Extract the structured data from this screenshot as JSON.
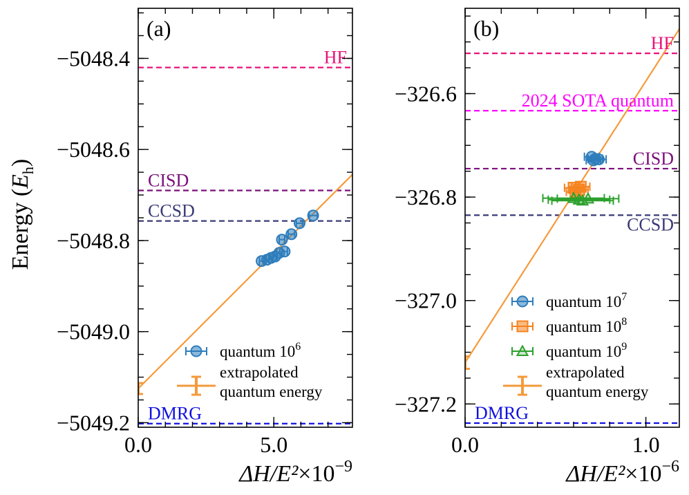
{
  "ylabel_main": "Energy (",
  "ylabel_sym": "E",
  "ylabel_sub": "h",
  "ylabel_close": ")",
  "chart_data": [
    {
      "type": "scatter",
      "panel_label": "(a)",
      "xlim": [
        0,
        7.9
      ],
      "ylim": [
        -5049.21,
        -5048.29
      ],
      "x_multiplier": "×10",
      "x_multiplier_exp": "−9",
      "xlabel": "ΔH/E²",
      "xticks": [
        {
          "value": 0,
          "label": "0.0"
        },
        {
          "value": 5,
          "label": "5.0"
        }
      ],
      "x_minor_step": 1,
      "yticks": [
        {
          "value": -5048.4,
          "label": "−5048.4"
        },
        {
          "value": -5048.6,
          "label": "−5048.6"
        },
        {
          "value": -5048.8,
          "label": "−5048.8"
        },
        {
          "value": -5049.0,
          "label": "−5049.0"
        },
        {
          "value": -5049.2,
          "label": "−5049.2"
        }
      ],
      "y_minor_step": 0.05,
      "reference_lines": [
        {
          "name": "HF",
          "y": -5048.42,
          "color": "#e8107a",
          "label_side": "right",
          "label_above": true
        },
        {
          "name": "CISD",
          "y": -5048.69,
          "color": "#7a0f7a",
          "label_side": "left",
          "label_above": true
        },
        {
          "name": "CCSD",
          "y": -5048.757,
          "color": "#3a3a78",
          "label_side": "left",
          "label_above": true
        },
        {
          "name": "DMRG",
          "y": -5049.202,
          "color": "#1010e0",
          "label_side": "left",
          "label_above": true
        }
      ],
      "fit_line": {
        "color": "#f59a3a",
        "x0": 0,
        "y0": -5049.125,
        "x1": 7.9,
        "y1": -5048.655
      },
      "series": [
        {
          "name": "quantum 10⁶",
          "marker": "circle",
          "color": "#2e7dbc",
          "points": [
            {
              "x": 4.55,
              "y": -5048.845,
              "xerr": 0.08
            },
            {
              "x": 4.75,
              "y": -5048.842,
              "xerr": 0.08
            },
            {
              "x": 4.9,
              "y": -5048.838,
              "xerr": 0.08
            },
            {
              "x": 5.05,
              "y": -5048.835,
              "xerr": 0.08
            },
            {
              "x": 5.2,
              "y": -5048.827,
              "xerr": 0.1
            },
            {
              "x": 5.4,
              "y": -5048.824,
              "xerr": 0.1
            },
            {
              "x": 5.3,
              "y": -5048.798,
              "xerr": 0.1
            },
            {
              "x": 5.65,
              "y": -5048.786,
              "xerr": 0.12
            },
            {
              "x": 5.95,
              "y": -5048.762,
              "xerr": 0.12
            },
            {
              "x": 6.45,
              "y": -5048.745,
              "xerr": 0.15
            }
          ]
        }
      ],
      "extrapolated": {
        "x": 0,
        "y": -5049.125,
        "yerr": 0.012,
        "color": "#f59a3a"
      },
      "legend": [
        {
          "text": "quantum 10",
          "sup": "6",
          "marker": "circle",
          "color": "#2e7dbc"
        },
        {
          "text": "extrapolated",
          "text2": "quantum energy",
          "marker": "errbar",
          "color": "#f59a3a"
        }
      ]
    },
    {
      "type": "scatter",
      "panel_label": "(b)",
      "xlim": [
        0,
        1.185
      ],
      "ylim": [
        -327.245,
        -326.435
      ],
      "x_multiplier": "×10",
      "x_multiplier_exp": "−6",
      "xlabel": "ΔH/E²",
      "xticks": [
        {
          "value": 0,
          "label": "0.0"
        },
        {
          "value": 1,
          "label": "1.0"
        }
      ],
      "x_minor_step": 0.2,
      "yticks": [
        {
          "value": -326.6,
          "label": "−326.6"
        },
        {
          "value": -326.8,
          "label": "−326.8"
        },
        {
          "value": -327.0,
          "label": "−327.0"
        },
        {
          "value": -327.2,
          "label": "−327.2"
        }
      ],
      "y_minor_step": 0.05,
      "reference_lines": [
        {
          "name": "HF",
          "y": -326.522,
          "color": "#e8107a",
          "label_side": "right",
          "label_above": true
        },
        {
          "name": "2024 SOTA quantum",
          "y": -326.633,
          "color": "#ff00ff",
          "label_side": "right",
          "label_above": true
        },
        {
          "name": "CISD",
          "y": -326.745,
          "color": "#7a0f7a",
          "label_side": "right",
          "label_above": true
        },
        {
          "name": "CCSD",
          "y": -326.835,
          "color": "#3a3a78",
          "label_side": "right",
          "label_above": false
        },
        {
          "name": "DMRG",
          "y": -327.237,
          "color": "#1010e0",
          "label_side": "left",
          "label_above": true
        }
      ],
      "fit_line": {
        "color": "#f59a3a",
        "x0": 0,
        "y0": -327.12,
        "x1": 1.185,
        "y1": -326.475
      },
      "series": [
        {
          "name": "quantum 10⁷",
          "marker": "circle",
          "color": "#2e7dbc",
          "points": [
            {
              "x": 0.7,
              "y": -326.722,
              "xerr": 0.04
            },
            {
              "x": 0.72,
              "y": -326.726,
              "xerr": 0.04
            },
            {
              "x": 0.74,
              "y": -326.727,
              "xerr": 0.04
            },
            {
              "x": 0.71,
              "y": -326.729,
              "xerr": 0.04
            }
          ]
        },
        {
          "name": "quantum 10⁸",
          "marker": "square",
          "color": "#f5831f",
          "points": [
            {
              "x": 0.6,
              "y": -326.782,
              "xerr": 0.05
            },
            {
              "x": 0.63,
              "y": -326.786,
              "xerr": 0.05
            },
            {
              "x": 0.61,
              "y": -326.79,
              "xerr": 0.05
            },
            {
              "x": 0.64,
              "y": -326.78,
              "xerr": 0.05
            }
          ]
        },
        {
          "name": "quantum 10⁹",
          "marker": "triangle",
          "color": "#2ca02c",
          "points": [
            {
              "x": 0.6,
              "y": -326.802,
              "xerr": 0.17
            },
            {
              "x": 0.63,
              "y": -326.805,
              "xerr": 0.17
            },
            {
              "x": 0.65,
              "y": -326.807,
              "xerr": 0.17
            },
            {
              "x": 0.68,
              "y": -326.803,
              "xerr": 0.17
            }
          ]
        }
      ],
      "extrapolated": {
        "x": 0,
        "y": -327.12,
        "yerr": 0.012,
        "color": "#f59a3a"
      },
      "legend": [
        {
          "text": "quantum 10",
          "sup": "7",
          "marker": "circle",
          "color": "#2e7dbc"
        },
        {
          "text": "quantum 10",
          "sup": "8",
          "marker": "square",
          "color": "#f5831f"
        },
        {
          "text": "quantum 10",
          "sup": "9",
          "marker": "triangle",
          "color": "#2ca02c"
        },
        {
          "text": "extrapolated",
          "text2": "quantum energy",
          "marker": "errbar",
          "color": "#f59a3a"
        }
      ]
    }
  ]
}
